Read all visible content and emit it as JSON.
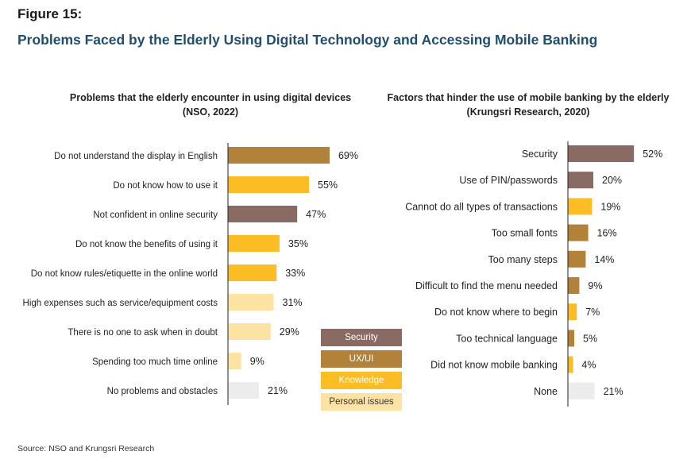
{
  "figure_label": "Figure 15:",
  "figure_title": "Problems Faced by the Elderly Using Digital Technology and Accessing Mobile Banking",
  "source": "Source: NSO and Krungsri Research",
  "colors": {
    "Security": "#8a6b64",
    "UX/UI": "#b3823a",
    "Knowledge": "#fcbd24",
    "Personal issues": "#fde3a3",
    "Other": "#ececec",
    "axis": "#222222"
  },
  "legend": [
    {
      "label": "Security",
      "color": "#8a6b64",
      "text_color": "#ffffff"
    },
    {
      "label": "UX/UI",
      "color": "#b3823a",
      "text_color": "#ffffff"
    },
    {
      "label": "Knowledge",
      "color": "#fcbd24",
      "text_color": "#ffffff"
    },
    {
      "label": "Personal issues",
      "color": "#fde3a3",
      "text_color": "#333333"
    }
  ],
  "chart_data": [
    {
      "type": "bar",
      "orientation": "horizontal",
      "title_line1": "Problems that the elderly encounter in using digital devices",
      "title_line2": "(NSO, 2022)",
      "xlim": [
        0,
        100
      ],
      "unit": "%",
      "categories": [
        "Do not understand the display in English",
        "Do not know how to use it",
        "Not confident in online security",
        "Do not know the benefits of using it",
        "Do not know rules/etiquette in the online world",
        "High expenses such as service/equipment costs",
        "There is no one to ask when in doubt",
        "Spending too much time online",
        "No problems and obstacles"
      ],
      "values": [
        69,
        55,
        47,
        35,
        33,
        31,
        29,
        9,
        21
      ],
      "groups": [
        "UX/UI",
        "Knowledge",
        "Security",
        "Knowledge",
        "Knowledge",
        "Personal issues",
        "Personal issues",
        "Personal issues",
        "Other"
      ]
    },
    {
      "type": "bar",
      "orientation": "horizontal",
      "title_line1": "Factors that hinder the use of mobile banking by the elderly",
      "title_line2": "(Krungsri Research, 2020)",
      "xlim": [
        0,
        100
      ],
      "unit": "%",
      "categories": [
        "Security",
        "Use of PIN/passwords",
        "Cannot do all types of transactions",
        "Too small fonts",
        "Too many steps",
        "Difficult to find the menu needed",
        "Do not know where to begin",
        "Too technical language",
        "Did not know mobile banking",
        "None"
      ],
      "values": [
        52,
        20,
        19,
        16,
        14,
        9,
        7,
        5,
        4,
        21
      ],
      "groups": [
        "Security",
        "Security",
        "Knowledge",
        "UX/UI",
        "UX/UI",
        "UX/UI",
        "Knowledge",
        "UX/UI",
        "Knowledge",
        "Other"
      ]
    }
  ]
}
